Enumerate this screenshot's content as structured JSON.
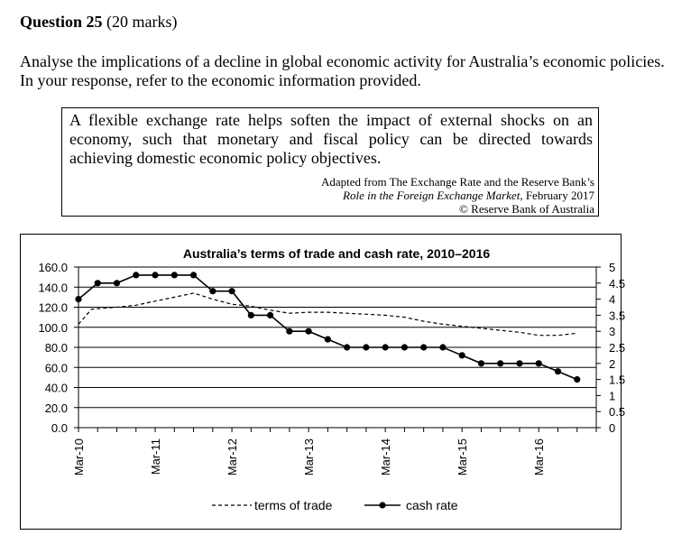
{
  "question": {
    "number": "Question 25",
    "marks": "(20 marks)",
    "text": "Analyse the implications of a decline in global economic activity for Australia’s economic policies. In your response, refer to the economic information provided."
  },
  "quote": {
    "text": "A flexible exchange rate helps soften the impact of external shocks on an economy, such that monetary and fiscal policy can be directed towards achieving domestic economic policy objectives.",
    "source_line1": "Adapted from The Exchange Rate and the Reserve Bank’s",
    "source_line2": "Role in the Foreign Exchange Market",
    "source_line2_tail": ", February 2017",
    "source_line3": "© Reserve Bank of Australia"
  },
  "chart_data": {
    "type": "line",
    "title": "Australia’s terms of trade and cash rate, 2010–2016",
    "x_tick_labels": [
      "Mar-10",
      "Mar-11",
      "Mar-12",
      "Mar-13",
      "Mar-14",
      "Mar-15",
      "Mar-16"
    ],
    "left_axis": {
      "ylim": [
        0,
        160
      ],
      "tick_labels": [
        "0.0",
        "20.0",
        "40.0",
        "60.0",
        "80.0",
        "100.0",
        "120.0",
        "140.0",
        "160.0"
      ],
      "tick_values": [
        0,
        20,
        40,
        60,
        80,
        100,
        120,
        140,
        160
      ]
    },
    "right_axis": {
      "ylim": [
        0,
        5
      ],
      "tick_labels": [
        "0",
        "0.5",
        "1",
        "1.5",
        "2",
        "2.5",
        "3",
        "3.5",
        "4",
        "4.5",
        "5"
      ],
      "tick_values": [
        0,
        0.5,
        1,
        1.5,
        2,
        2.5,
        3,
        3.5,
        4,
        4.5,
        5
      ]
    },
    "grid": true,
    "legend_placement": "bottom",
    "series": [
      {
        "name": "terms of trade",
        "axis": "left",
        "style": "dashed",
        "x": [
          2010.0,
          2010.17,
          2010.5,
          2010.75,
          2011.0,
          2011.25,
          2011.5,
          2011.75,
          2012.0,
          2012.25,
          2012.5,
          2012.75,
          2013.0,
          2013.25,
          2013.5,
          2013.75,
          2014.0,
          2014.25,
          2014.5,
          2014.75,
          2015.0,
          2015.25,
          2015.5,
          2015.75,
          2016.0,
          2016.25,
          2016.5
        ],
        "values": [
          103,
          118,
          120,
          122,
          126,
          130,
          134,
          128,
          123,
          121,
          117,
          114,
          115,
          115,
          114,
          113,
          112,
          110,
          106,
          103,
          101,
          99,
          97,
          95,
          92,
          92,
          94
        ]
      },
      {
        "name": "cash rate",
        "axis": "right",
        "style": "solid-markers",
        "x": [
          2010.0,
          2010.25,
          2010.5,
          2010.75,
          2011.0,
          2011.25,
          2011.5,
          2011.75,
          2012.0,
          2012.25,
          2012.5,
          2012.75,
          2013.0,
          2013.25,
          2013.5,
          2013.75,
          2014.0,
          2014.25,
          2014.5,
          2014.75,
          2015.0,
          2015.25,
          2015.5,
          2015.75,
          2016.0,
          2016.25,
          2016.5
        ],
        "values": [
          4.0,
          4.5,
          4.5,
          4.75,
          4.75,
          4.75,
          4.75,
          4.25,
          4.25,
          3.5,
          3.5,
          3.0,
          3.0,
          2.75,
          2.5,
          2.5,
          2.5,
          2.5,
          2.5,
          2.5,
          2.25,
          2.0,
          2.0,
          2.0,
          2.0,
          1.75,
          1.5
        ]
      }
    ]
  }
}
